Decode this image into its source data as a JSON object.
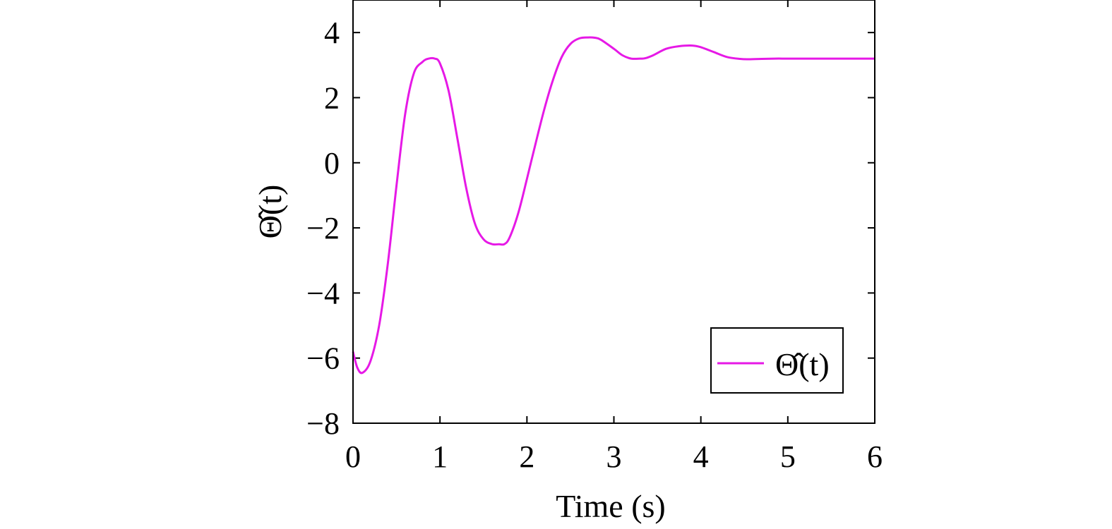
{
  "chart_data": {
    "type": "line",
    "title": "",
    "xlabel": "Time (s)",
    "ylabel": "Θ̂(t)",
    "xlim": [
      0,
      6
    ],
    "ylim": [
      -8,
      5
    ],
    "xticks": [
      0,
      1,
      2,
      3,
      4,
      5,
      6
    ],
    "yticks": [
      -8,
      -6,
      -4,
      -2,
      0,
      2,
      4
    ],
    "xtick_labels": [
      "0",
      "1",
      "2",
      "3",
      "4",
      "5",
      "6"
    ],
    "ytick_labels": [
      "−8",
      "−6",
      "−4",
      "−2",
      "0",
      "2",
      "4"
    ],
    "grid": false,
    "legend_position": "bottom-right",
    "series": [
      {
        "name": "Θ̂(t)",
        "color": "#e619e6",
        "x": [
          0,
          0.05,
          0.11,
          0.2,
          0.3,
          0.4,
          0.5,
          0.6,
          0.7,
          0.8,
          0.87,
          0.94,
          1.0,
          1.1,
          1.2,
          1.3,
          1.4,
          1.5,
          1.6,
          1.68,
          1.74,
          1.8,
          1.9,
          2.0,
          2.1,
          2.2,
          2.3,
          2.4,
          2.5,
          2.6,
          2.7,
          2.78,
          2.85,
          3.0,
          3.1,
          3.2,
          3.3,
          3.36,
          3.45,
          3.6,
          3.75,
          3.9,
          4.0,
          4.15,
          4.3,
          4.45,
          4.55,
          4.7,
          4.85,
          5.0,
          5.3,
          5.6,
          6.0
        ],
        "y": [
          -5.8,
          -6.3,
          -6.45,
          -6.1,
          -5.0,
          -3.1,
          -0.7,
          1.5,
          2.75,
          3.1,
          3.2,
          3.2,
          3.05,
          2.2,
          0.75,
          -0.75,
          -1.85,
          -2.35,
          -2.5,
          -2.5,
          -2.5,
          -2.3,
          -1.55,
          -0.5,
          0.6,
          1.65,
          2.55,
          3.25,
          3.65,
          3.82,
          3.85,
          3.84,
          3.78,
          3.5,
          3.3,
          3.2,
          3.2,
          3.21,
          3.3,
          3.5,
          3.58,
          3.6,
          3.55,
          3.4,
          3.25,
          3.19,
          3.18,
          3.19,
          3.2,
          3.2,
          3.2,
          3.2,
          3.2
        ]
      }
    ]
  }
}
